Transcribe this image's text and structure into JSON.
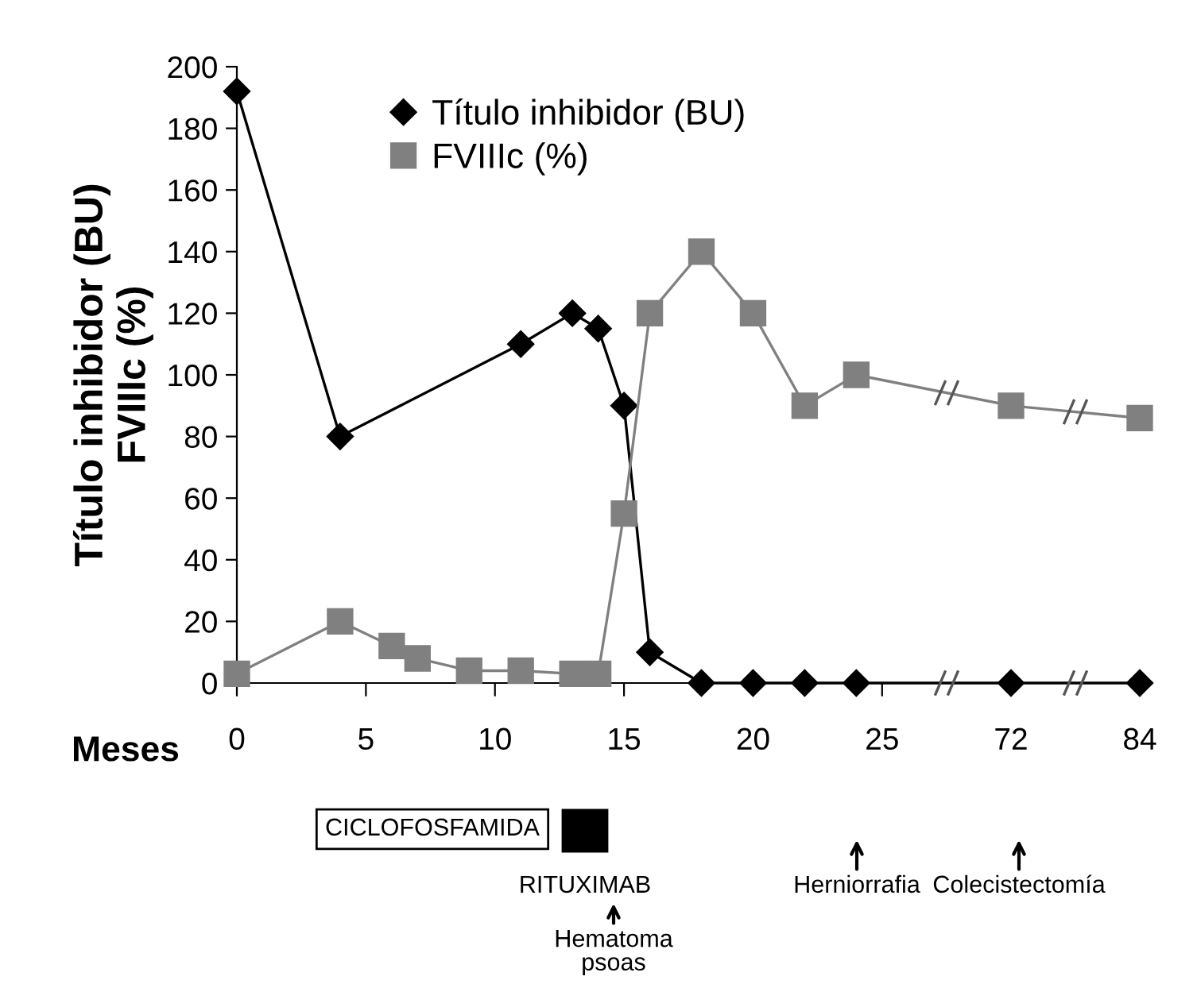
{
  "chart_data": [
    {
      "type": "line",
      "ylabel": "Título inhibidor (BU)\nFVIIIc (%)",
      "xlabel": "Meses",
      "xlim": [
        0,
        27.5
      ],
      "xticks": [
        0,
        5,
        10,
        15,
        20,
        25
      ],
      "ylim": [
        0,
        200
      ],
      "yticks": [
        0,
        20,
        40,
        60,
        80,
        100,
        120,
        140,
        160,
        180,
        200
      ],
      "legend": "top",
      "line_style": "solid",
      "series": [
        {
          "name": "Título inhibidor (BU)",
          "color": "#000000",
          "marker": "diamond",
          "x": [
            0,
            4,
            11,
            13,
            14,
            15,
            16,
            18,
            20,
            22,
            24
          ],
          "values": [
            192,
            80,
            110,
            120,
            115,
            90,
            10,
            0,
            0,
            0,
            0
          ]
        },
        {
          "name": "FVIIIc (%)",
          "color": "#808080",
          "marker": "square",
          "x": [
            0,
            4,
            6,
            7,
            9,
            11,
            13,
            14,
            15,
            16,
            18,
            20,
            22,
            24
          ],
          "values": [
            3,
            20,
            12,
            8,
            4,
            4,
            3,
            3,
            55,
            120,
            140,
            120,
            90,
            100
          ]
        }
      ],
      "annotations": [
        "CICLOFOSFAMIDA",
        "RITUXIMAB",
        "Hematoma\npsoas",
        "Herniorrafia"
      ]
    },
    {
      "type": "line",
      "xlim": [
        66,
        84
      ],
      "xticks": [
        72,
        84
      ],
      "ylim": [
        0,
        200
      ],
      "tick_labels": "x",
      "line_style": "solid",
      "series": [
        {
          "color": "#000000",
          "marker": "diamond",
          "x": [
            72,
            84
          ],
          "values": [
            0,
            0
          ]
        },
        {
          "color": "#808080",
          "marker": "square",
          "x": [
            72,
            84
          ],
          "values": [
            90,
            86
          ]
        }
      ],
      "annotations": [
        "Colecistectomía"
      ]
    }
  ]
}
